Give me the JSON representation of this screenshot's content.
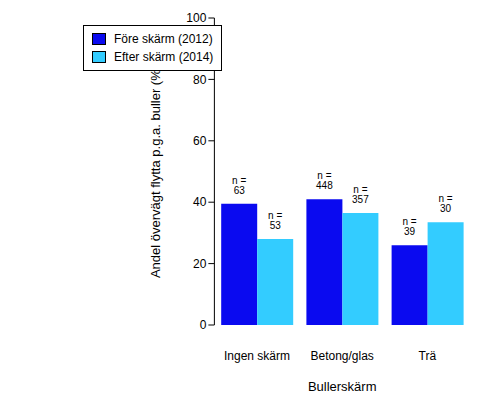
{
  "chart_data": {
    "type": "bar",
    "x_label": "Bullerskärm",
    "y_label": "Andel övervägt flytta p.g.a. buller (%)",
    "categories": [
      "Ingen skärm",
      "Betong/glas",
      "Trä"
    ],
    "series": [
      {
        "name": "Före skärm (2012)",
        "color": "#0a0af0",
        "values": [
          39.5,
          41,
          26
        ],
        "n_labels": [
          "n = 63",
          "n = 448",
          "n = 39"
        ]
      },
      {
        "name": "Efter skärm (2014)",
        "color": "#33ccff",
        "values": [
          28,
          36.5,
          33.5
        ],
        "n_labels": [
          "n = 53",
          "n = 357",
          "n = 30"
        ]
      }
    ],
    "ylim": [
      0,
      100
    ],
    "yticks": [
      0,
      20,
      40,
      60,
      80,
      100
    ],
    "grid": false,
    "legend": "upper left"
  }
}
